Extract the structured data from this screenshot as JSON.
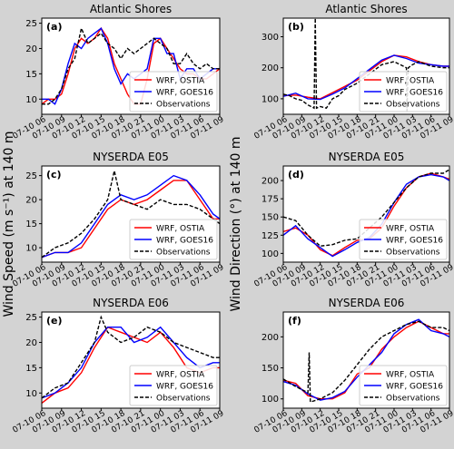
{
  "figure": {
    "ylabel_left": "Wind Speed (m s⁻¹) at 140 m",
    "ylabel_right": "Wind Direction (°) at 140 m"
  },
  "colors": {
    "background": "#d3d3d3",
    "ostia": "#ff0000",
    "goes16": "#0000ff",
    "obs": "#000000"
  },
  "chart_data": [
    {
      "type": "line",
      "panel": "(a)",
      "title": "Atlantic Shores",
      "xticks": [
        "07-10 06",
        "07-10 09",
        "07-10 12",
        "07-10 15",
        "07-10 18",
        "07-10 21",
        "07-11 00",
        "07-11 03",
        "07-11 06",
        "07-11 09"
      ],
      "yticks": [
        10,
        15,
        20,
        25
      ],
      "ylim": [
        7,
        26
      ],
      "legend": [
        "WRF, OSTIA",
        "WRF, GOES16",
        "Observations"
      ],
      "legend_position": "bottom-right",
      "series": [
        {
          "name": "WRF, OSTIA",
          "color": "#ff0000",
          "style": "solid",
          "x": [
            0,
            1,
            2,
            3,
            4,
            5,
            6,
            7,
            8,
            9,
            10,
            11,
            12,
            13,
            14,
            15,
            16,
            17,
            18,
            19,
            20,
            21,
            22,
            23,
            24,
            25,
            26,
            27
          ],
          "y": [
            9,
            10,
            10,
            11,
            15,
            20,
            22,
            21,
            22,
            24,
            22,
            17,
            14,
            11,
            9,
            9,
            14,
            21,
            22,
            20,
            18,
            16,
            15,
            15,
            14,
            14,
            15,
            16
          ]
        },
        {
          "name": "WRF, GOES16",
          "color": "#0000ff",
          "style": "solid",
          "x": [
            0,
            1,
            2,
            3,
            4,
            5,
            6,
            7,
            8,
            9,
            10,
            11,
            12,
            13,
            14,
            15,
            16,
            17,
            18,
            19,
            20,
            21,
            22,
            23,
            24,
            25,
            26,
            27
          ],
          "y": [
            10,
            10,
            9,
            12,
            17,
            21,
            20,
            22,
            23,
            24,
            21,
            16,
            13,
            15,
            14,
            15,
            16,
            22,
            22,
            19,
            19,
            14,
            16,
            16,
            14,
            15,
            16,
            16
          ]
        },
        {
          "name": "Observations",
          "color": "#000000",
          "style": "dashed",
          "x": [
            0,
            1,
            2,
            3,
            4,
            5,
            6,
            7,
            8,
            9,
            10,
            11,
            12,
            13,
            14,
            15,
            16,
            17,
            18,
            19,
            20,
            21,
            22,
            23,
            24,
            25,
            26,
            27
          ],
          "y": [
            9,
            9,
            10,
            12,
            16,
            18,
            24,
            21,
            22,
            23,
            21,
            20,
            18,
            20,
            19,
            20,
            21,
            22,
            21,
            20,
            17,
            17,
            19,
            17,
            16,
            17,
            16,
            16
          ]
        }
      ]
    },
    {
      "type": "line",
      "panel": "(b)",
      "title": "Atlantic Shores",
      "xticks": [
        "07-10 06",
        "07-10 09",
        "07-10 12",
        "07-10 15",
        "07-10 18",
        "07-10 21",
        "07-11 00",
        "07-11 03",
        "07-11 06",
        "07-11 09"
      ],
      "yticks": [
        100,
        200,
        300
      ],
      "ylim": [
        50,
        360
      ],
      "legend": [
        "WRF, OSTIA",
        "WRF, GOES16",
        "Observations"
      ],
      "legend_position": "bottom-right",
      "series": [
        {
          "name": "WRF, OSTIA",
          "color": "#ff0000",
          "style": "solid",
          "x": [
            0,
            2,
            4,
            6,
            8,
            10,
            12,
            14,
            16,
            18,
            20,
            22,
            24,
            26,
            27
          ],
          "y": [
            110,
            112,
            105,
            100,
            120,
            140,
            160,
            190,
            220,
            240,
            235,
            220,
            210,
            205,
            205
          ]
        },
        {
          "name": "WRF, GOES16",
          "color": "#0000ff",
          "style": "solid",
          "x": [
            0,
            2,
            4,
            6,
            8,
            10,
            12,
            14,
            16,
            18,
            20,
            22,
            24,
            26,
            27
          ],
          "y": [
            108,
            118,
            100,
            98,
            115,
            135,
            165,
            195,
            225,
            240,
            230,
            215,
            210,
            205,
            205
          ]
        },
        {
          "name": "Observations",
          "color": "#000000",
          "style": "dashed",
          "x": [
            0,
            1,
            2,
            3,
            4,
            5,
            5.2,
            5.4,
            6,
            7,
            8,
            9,
            10,
            12,
            14,
            16,
            18,
            19,
            20,
            20.1,
            20.3,
            21,
            22,
            24,
            26,
            27
          ],
          "y": [
            115,
            110,
            100,
            95,
            80,
            70,
            360,
            70,
            75,
            70,
            100,
            110,
            130,
            150,
            180,
            210,
            220,
            210,
            200,
            60,
            200,
            210,
            220,
            205,
            200,
            200
          ]
        }
      ]
    },
    {
      "type": "line",
      "panel": "(c)",
      "title": "NYSERDA E05",
      "xticks": [
        "07-10 06",
        "07-10 09",
        "07-10 12",
        "07-10 15",
        "07-10 18",
        "07-10 21",
        "07-11 00",
        "07-11 03",
        "07-11 06",
        "07-11 09"
      ],
      "yticks": [
        10,
        15,
        20,
        25
      ],
      "ylim": [
        7,
        27
      ],
      "legend": [
        "WRF, OSTIA",
        "WRF, GOES16",
        "Observations"
      ],
      "legend_position": "bottom-right",
      "series": [
        {
          "name": "WRF, OSTIA",
          "color": "#ff0000",
          "style": "solid",
          "x": [
            0,
            2,
            4,
            6,
            8,
            10,
            12,
            14,
            16,
            18,
            20,
            22,
            24,
            26,
            27
          ],
          "y": [
            8,
            9,
            9,
            10,
            14,
            18,
            20,
            19,
            20,
            22,
            24,
            24,
            20,
            16,
            16
          ]
        },
        {
          "name": "WRF, GOES16",
          "color": "#0000ff",
          "style": "solid",
          "x": [
            0,
            2,
            4,
            6,
            8,
            10,
            12,
            14,
            16,
            18,
            20,
            22,
            24,
            26,
            27
          ],
          "y": [
            8,
            9,
            9,
            11,
            15,
            19,
            21,
            20,
            21,
            23,
            25,
            24,
            21,
            17,
            16
          ]
        },
        {
          "name": "Observations",
          "color": "#000000",
          "style": "dashed",
          "x": [
            0,
            2,
            4,
            6,
            8,
            10,
            11,
            12,
            14,
            16,
            18,
            20,
            22,
            24,
            26,
            27
          ],
          "y": [
            8,
            10,
            11,
            13,
            16,
            20,
            26,
            20,
            19,
            18,
            20,
            19,
            19,
            18,
            16,
            15
          ]
        }
      ]
    },
    {
      "type": "line",
      "panel": "(d)",
      "title": "NYSERDA E05",
      "xticks": [
        "07-10 06",
        "07-10 09",
        "07-10 12",
        "07-10 15",
        "07-10 18",
        "07-10 21",
        "07-11 00",
        "07-11 03",
        "07-11 06",
        "07-11 09"
      ],
      "yticks": [
        100,
        125,
        150,
        175,
        200
      ],
      "ylim": [
        88,
        220
      ],
      "legend": [
        "WRF, OSTIA",
        "WRF, GOES16",
        "Observations"
      ],
      "legend_position": "bottom-right",
      "series": [
        {
          "name": "WRF, OSTIA",
          "color": "#ff0000",
          "style": "solid",
          "x": [
            0,
            2,
            4,
            6,
            8,
            10,
            12,
            14,
            16,
            18,
            20,
            22,
            24,
            26,
            27
          ],
          "y": [
            130,
            135,
            125,
            105,
            97,
            108,
            118,
            120,
            135,
            165,
            190,
            205,
            210,
            205,
            202
          ]
        },
        {
          "name": "WRF, GOES16",
          "color": "#0000ff",
          "style": "solid",
          "x": [
            0,
            2,
            4,
            6,
            8,
            10,
            12,
            14,
            16,
            18,
            20,
            22,
            24,
            26,
            27
          ],
          "y": [
            125,
            138,
            120,
            108,
            96,
            105,
            115,
            122,
            140,
            170,
            195,
            205,
            208,
            205,
            200
          ]
        },
        {
          "name": "Observations",
          "color": "#000000",
          "style": "dashed",
          "x": [
            0,
            2,
            4,
            6,
            8,
            10,
            12,
            14,
            16,
            18,
            20,
            22,
            24,
            26,
            27
          ],
          "y": [
            150,
            145,
            125,
            110,
            112,
            118,
            120,
            135,
            150,
            170,
            190,
            205,
            210,
            210,
            215
          ]
        }
      ]
    },
    {
      "type": "line",
      "panel": "(e)",
      "title": "NYSERDA E06",
      "xticks": [
        "07-10 06",
        "07-10 09",
        "07-10 12",
        "07-10 15",
        "07-10 18",
        "07-10 21",
        "07-11 00",
        "07-11 03",
        "07-11 06",
        "07-11 09"
      ],
      "yticks": [
        10,
        15,
        20,
        25
      ],
      "ylim": [
        7,
        26
      ],
      "legend": [
        "WRF, OSTIA",
        "WRF, GOES16",
        "Observations"
      ],
      "legend_position": "bottom-right",
      "series": [
        {
          "name": "WRF, OSTIA",
          "color": "#ff0000",
          "style": "solid",
          "x": [
            0,
            2,
            4,
            6,
            8,
            10,
            12,
            14,
            16,
            18,
            20,
            22,
            24,
            26,
            27
          ],
          "y": [
            8,
            10,
            11,
            14,
            19,
            23,
            22,
            21,
            20,
            22,
            19,
            15,
            14,
            15,
            15
          ]
        },
        {
          "name": "WRF, GOES16",
          "color": "#0000ff",
          "style": "solid",
          "x": [
            0,
            2,
            4,
            6,
            8,
            10,
            12,
            14,
            16,
            18,
            20,
            22,
            24,
            26,
            27
          ],
          "y": [
            9,
            10,
            12,
            15,
            20,
            23,
            23,
            20,
            21,
            23,
            20,
            17,
            15,
            16,
            16
          ]
        },
        {
          "name": "Observations",
          "color": "#000000",
          "style": "dashed",
          "x": [
            0,
            2,
            4,
            6,
            8,
            9,
            10,
            12,
            14,
            16,
            18,
            20,
            22,
            24,
            26,
            27
          ],
          "y": [
            9,
            11,
            12,
            16,
            20,
            25,
            22,
            20,
            21,
            23,
            22,
            20,
            19,
            18,
            17,
            17
          ]
        }
      ]
    },
    {
      "type": "line",
      "panel": "(f)",
      "title": "NYSERDA E06",
      "xticks": [
        "07-10 06",
        "07-10 09",
        "07-10 12",
        "07-10 15",
        "07-10 18",
        "07-10 21",
        "07-11 00",
        "07-11 03",
        "07-11 06",
        "07-11 09"
      ],
      "yticks": [
        100,
        150,
        200
      ],
      "ylim": [
        85,
        240
      ],
      "legend": [
        "WRF, OSTIA",
        "WRF, GOES16",
        "Observations"
      ],
      "legend_position": "bottom-right",
      "series": [
        {
          "name": "WRF, OSTIA",
          "color": "#ff0000",
          "style": "solid",
          "x": [
            0,
            2,
            4,
            6,
            8,
            10,
            12,
            14,
            16,
            18,
            20,
            22,
            24,
            26,
            27
          ],
          "y": [
            130,
            125,
            105,
            100,
            100,
            110,
            140,
            150,
            180,
            200,
            215,
            225,
            215,
            205,
            205
          ]
        },
        {
          "name": "WRF, GOES16",
          "color": "#0000ff",
          "style": "solid",
          "x": [
            0,
            2,
            4,
            6,
            8,
            10,
            12,
            14,
            16,
            18,
            20,
            22,
            24,
            26,
            27
          ],
          "y": [
            128,
            122,
            108,
            98,
            102,
            112,
            135,
            155,
            175,
            205,
            220,
            228,
            210,
            205,
            200
          ]
        },
        {
          "name": "Observations",
          "color": "#000000",
          "style": "dashed",
          "x": [
            0,
            2,
            4,
            4.2,
            4.4,
            6,
            8,
            10,
            12,
            14,
            16,
            18,
            20,
            22,
            24,
            26,
            27
          ],
          "y": [
            132,
            120,
            110,
            175,
            95,
            100,
            110,
            130,
            155,
            180,
            200,
            210,
            220,
            225,
            215,
            215,
            210
          ]
        }
      ]
    }
  ]
}
